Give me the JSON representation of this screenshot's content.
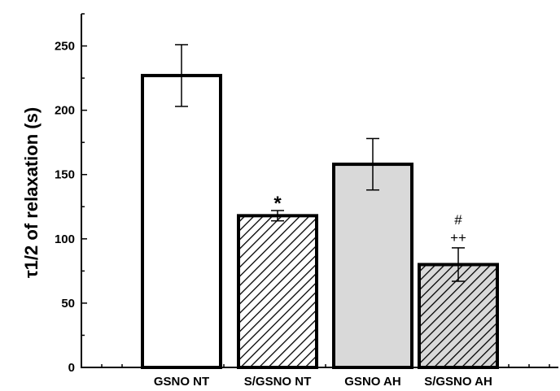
{
  "chart_data": {
    "type": "bar",
    "title": "",
    "xlabel": "",
    "ylabel": "τ1/2 of relaxation (s)",
    "ylim": [
      0,
      275
    ],
    "yticks": [
      0,
      50,
      100,
      150,
      200,
      250
    ],
    "grid": false,
    "categories": [
      "GSNO NT",
      "S/GSNO NT",
      "GSNO AH",
      "S/GSNO AH"
    ],
    "values": [
      227,
      118,
      158,
      80
    ],
    "errors": [
      24,
      4,
      20,
      13
    ],
    "bar_styles": [
      {
        "fill": "#ffffff",
        "hatch": false
      },
      {
        "fill": "#ffffff",
        "hatch": true
      },
      {
        "fill": "#d9d9d9",
        "hatch": false
      },
      {
        "fill": "#d9d9d9",
        "hatch": true
      }
    ],
    "annotations": [
      {
        "category": "S/GSNO NT",
        "lines": [
          "*"
        ]
      },
      {
        "category": "S/GSNO AH",
        "lines": [
          "#",
          "++"
        ]
      }
    ]
  }
}
